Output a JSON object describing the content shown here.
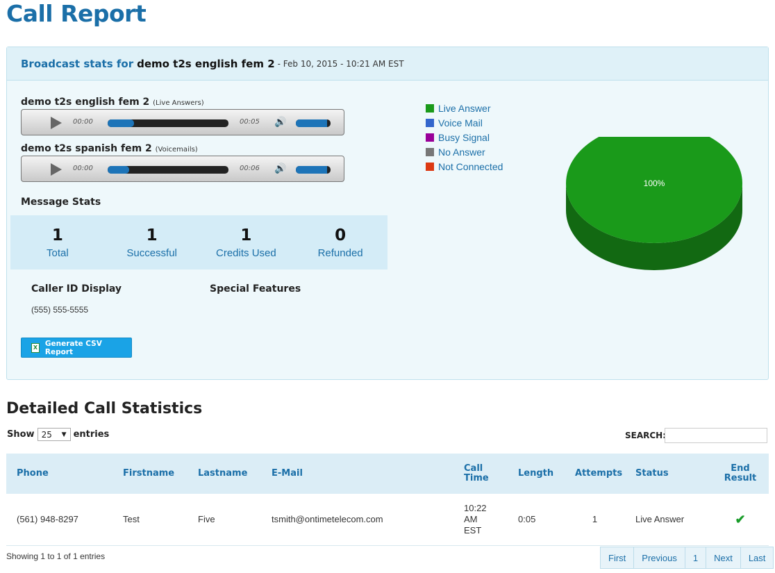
{
  "page": {
    "title": "Call Report"
  },
  "broadcast": {
    "header_label": "Broadcast stats for",
    "name": "demo t2s english fem 2",
    "date": "- Feb 10, 2015 - 10:21 AM EST"
  },
  "players": [
    {
      "title": "demo t2s english fem 2",
      "subtitle": "(Live Answers)",
      "current_time": "00:00",
      "duration": "00:05",
      "progress_fraction": 0.22,
      "volume_fraction": 0.9
    },
    {
      "title": "demo t2s spanish fem 2",
      "subtitle": "(Voicemails)",
      "current_time": "00:00",
      "duration": "00:06",
      "progress_fraction": 0.18,
      "volume_fraction": 0.9
    }
  ],
  "message_stats": {
    "title": "Message Stats",
    "items": [
      {
        "value": "1",
        "label": "Total"
      },
      {
        "value": "1",
        "label": "Successful"
      },
      {
        "value": "1",
        "label": "Credits Used"
      },
      {
        "value": "0",
        "label": "Refunded"
      }
    ]
  },
  "caller_id": {
    "heading": "Caller ID Display",
    "value": "(555) 555-5555"
  },
  "special_features": {
    "heading": "Special Features"
  },
  "csv_button": {
    "label": "Generate CSV Report",
    "icon": "excel-icon"
  },
  "chart_data": {
    "type": "pie",
    "legend": [
      "Live Answer",
      "Voice Mail",
      "Busy Signal",
      "No Answer",
      "Not Connected"
    ],
    "slices": [
      {
        "label": "Live Answer",
        "value": 100,
        "color": "#1a9a1a"
      },
      {
        "label": "Voice Mail",
        "value": 0,
        "color": "#3366cc"
      },
      {
        "label": "Busy Signal",
        "value": 0,
        "color": "#990099"
      },
      {
        "label": "No Answer",
        "value": 0,
        "color": "#777777"
      },
      {
        "label": "Not Connected",
        "value": 0,
        "color": "#dc3912"
      }
    ],
    "data_labels": [
      "100%"
    ],
    "legend_position": "left"
  },
  "details": {
    "title": "Detailed Call Statistics",
    "show_label": "Show",
    "entries_value": "25",
    "entries_label": "entries",
    "search_label": "SEARCH:",
    "search_value": "",
    "columns": [
      "Phone",
      "Firstname",
      "Lastname",
      "E-Mail",
      "Call Time",
      "Length",
      "Attempts",
      "Status",
      "End Result"
    ],
    "rows": [
      {
        "phone": "(561) 948-8297",
        "firstname": "Test",
        "lastname": "Five",
        "email": "tsmith@ontimetelecom.com",
        "call_time": "10:22 AM EST",
        "length": "0:05",
        "attempts": "1",
        "status": "Live Answer",
        "end_result": "✔"
      }
    ],
    "info": "Showing 1 to 1 of 1 entries",
    "pagination": [
      "First",
      "Previous",
      "1",
      "Next",
      "Last"
    ]
  }
}
